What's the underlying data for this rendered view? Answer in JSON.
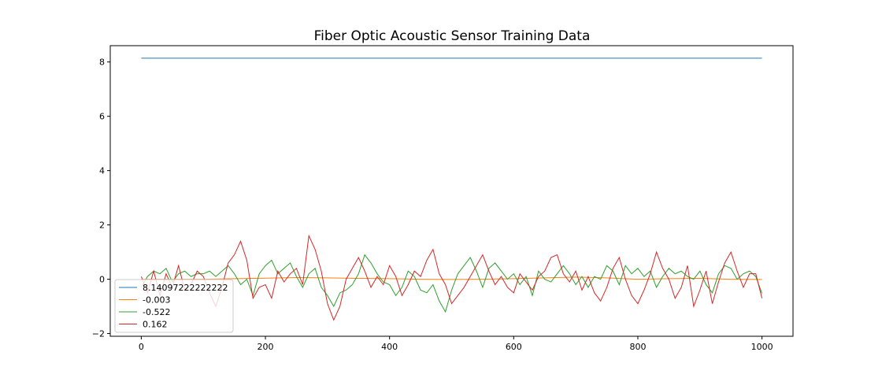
{
  "chart_data": {
    "type": "line",
    "title": "Fiber Optic Acoustic Sensor Training Data",
    "xlabel": "",
    "ylabel": "",
    "xlim": [
      -50,
      1050
    ],
    "ylim": [
      -2.1,
      8.6
    ],
    "xticks": [
      0,
      200,
      400,
      600,
      800,
      1000
    ],
    "xtick_labels": [
      "0",
      "200",
      "400",
      "600",
      "800",
      "1000"
    ],
    "yticks": [
      -2,
      0,
      2,
      4,
      6,
      8
    ],
    "ytick_labels": [
      "−2",
      "0",
      "2",
      "4",
      "6",
      "8"
    ],
    "grid": false,
    "legend_position": "lower-left",
    "series": [
      {
        "name": "8.14097222222222",
        "color": "#1f77b4",
        "x": [
          0,
          250,
          500,
          750,
          1000
        ],
        "values": [
          8.141,
          8.141,
          8.141,
          8.141,
          8.141
        ]
      },
      {
        "name": "-0.003",
        "color": "#ff7f0e",
        "x": [
          0,
          50,
          100,
          150,
          200,
          250,
          300,
          350,
          400,
          450,
          500,
          550,
          600,
          650,
          700,
          750,
          800,
          850,
          900,
          950,
          1000
        ],
        "values": [
          0.0,
          0.0,
          0.0,
          0.02,
          0.04,
          0.06,
          0.05,
          0.03,
          0.02,
          0.0,
          -0.01,
          0.0,
          0.02,
          0.05,
          0.08,
          0.05,
          0.0,
          0.02,
          0.03,
          0.0,
          -0.01
        ]
      },
      {
        "name": "-0.522",
        "color": "#2ca02c",
        "x": [
          0,
          10,
          20,
          30,
          40,
          50,
          60,
          70,
          80,
          90,
          100,
          110,
          120,
          130,
          140,
          150,
          160,
          170,
          180,
          190,
          200,
          210,
          220,
          230,
          240,
          250,
          260,
          270,
          280,
          290,
          300,
          310,
          320,
          330,
          340,
          350,
          360,
          370,
          380,
          390,
          400,
          410,
          420,
          430,
          440,
          450,
          460,
          470,
          480,
          490,
          500,
          510,
          520,
          530,
          540,
          550,
          560,
          570,
          580,
          590,
          600,
          610,
          620,
          630,
          640,
          650,
          660,
          670,
          680,
          690,
          700,
          710,
          720,
          730,
          740,
          750,
          760,
          770,
          780,
          790,
          800,
          810,
          820,
          830,
          840,
          850,
          860,
          870,
          880,
          890,
          900,
          910,
          920,
          930,
          940,
          950,
          960,
          970,
          980,
          990,
          1000
        ],
        "values": [
          -0.3,
          0.1,
          0.3,
          0.2,
          0.4,
          -0.1,
          0.2,
          0.3,
          0.1,
          0.2,
          0.2,
          0.3,
          0.1,
          0.3,
          0.5,
          0.2,
          -0.2,
          0.0,
          -0.6,
          0.2,
          0.5,
          0.7,
          0.2,
          0.4,
          0.6,
          0.1,
          -0.3,
          0.2,
          0.4,
          -0.3,
          -0.6,
          -1.0,
          -0.5,
          -0.4,
          -0.2,
          0.2,
          0.9,
          0.6,
          0.2,
          -0.1,
          -0.2,
          -0.6,
          -0.3,
          0.3,
          0.1,
          -0.4,
          -0.5,
          -0.2,
          -0.8,
          -1.2,
          -0.4,
          0.2,
          0.5,
          0.8,
          0.3,
          -0.3,
          0.4,
          0.6,
          0.3,
          0.0,
          0.2,
          -0.2,
          0.1,
          -0.6,
          0.3,
          0.0,
          -0.1,
          0.2,
          0.5,
          0.2,
          -0.2,
          0.1,
          -0.3,
          0.1,
          0.0,
          0.5,
          0.3,
          -0.2,
          0.5,
          0.2,
          0.4,
          0.1,
          0.3,
          -0.3,
          0.1,
          0.4,
          0.2,
          0.3,
          0.1,
          0.0,
          0.3,
          -0.2,
          -0.5,
          0.2,
          0.5,
          0.4,
          0.0,
          0.2,
          0.3,
          0.1,
          -0.52
        ]
      },
      {
        "name": "0.162",
        "color": "#d62728",
        "x": [
          0,
          10,
          20,
          30,
          40,
          50,
          60,
          70,
          80,
          90,
          100,
          110,
          120,
          130,
          140,
          150,
          160,
          170,
          180,
          190,
          200,
          210,
          220,
          230,
          240,
          250,
          260,
          270,
          280,
          290,
          300,
          310,
          320,
          330,
          340,
          350,
          360,
          370,
          380,
          390,
          400,
          410,
          420,
          430,
          440,
          450,
          460,
          470,
          480,
          490,
          500,
          510,
          520,
          530,
          540,
          550,
          560,
          570,
          580,
          590,
          600,
          610,
          620,
          630,
          640,
          650,
          660,
          670,
          680,
          690,
          700,
          710,
          720,
          730,
          740,
          750,
          760,
          770,
          780,
          790,
          800,
          810,
          820,
          830,
          840,
          850,
          860,
          870,
          880,
          890,
          900,
          910,
          920,
          930,
          940,
          950,
          960,
          970,
          980,
          990,
          1000
        ],
        "values": [
          0.1,
          -0.5,
          0.3,
          -0.6,
          0.2,
          -0.3,
          0.5,
          -0.4,
          -0.2,
          0.3,
          0.1,
          -0.5,
          -1.0,
          -0.3,
          0.6,
          0.9,
          1.4,
          0.7,
          -0.7,
          -0.3,
          -0.2,
          -0.7,
          0.3,
          -0.1,
          0.2,
          0.4,
          -0.2,
          1.6,
          1.1,
          0.3,
          -0.9,
          -1.5,
          -1.0,
          0.0,
          0.4,
          0.8,
          0.3,
          -0.3,
          0.1,
          -0.2,
          0.5,
          0.1,
          -0.6,
          -0.2,
          0.3,
          0.1,
          0.7,
          1.1,
          0.2,
          -0.2,
          -0.9,
          -0.6,
          -0.3,
          0.1,
          0.5,
          0.9,
          0.3,
          -0.2,
          0.1,
          -0.3,
          -0.5,
          0.2,
          -0.1,
          -0.4,
          0.1,
          0.3,
          0.8,
          0.9,
          0.2,
          -0.1,
          0.3,
          -0.4,
          0.1,
          -0.5,
          -0.8,
          -0.3,
          0.4,
          0.8,
          0.0,
          -0.6,
          -0.9,
          -0.4,
          0.2,
          1.0,
          0.4,
          0.0,
          -0.7,
          -0.3,
          0.5,
          -1.0,
          -0.4,
          0.3,
          -0.9,
          -0.1,
          0.6,
          1.0,
          0.3,
          -0.3,
          0.2,
          0.2,
          -0.7
        ]
      }
    ]
  }
}
